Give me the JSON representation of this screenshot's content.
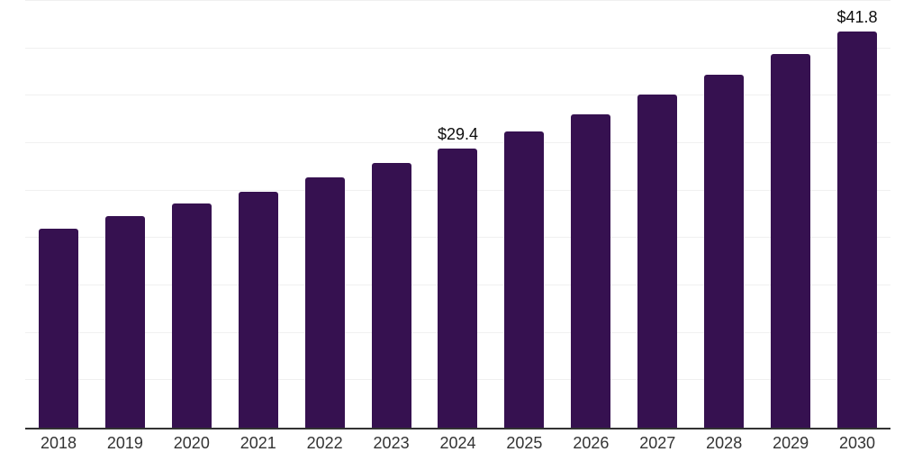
{
  "chart_data": {
    "type": "bar",
    "title": "",
    "xlabel": "",
    "ylabel": "",
    "categories": [
      "2018",
      "2019",
      "2020",
      "2021",
      "2022",
      "2023",
      "2024",
      "2025",
      "2026",
      "2027",
      "2028",
      "2029",
      "2030"
    ],
    "values": [
      21.0,
      22.3,
      23.6,
      24.9,
      26.4,
      27.9,
      29.4,
      31.2,
      33.0,
      35.1,
      37.2,
      39.4,
      41.8
    ],
    "points": [
      {
        "year": "2018",
        "value": 21.0,
        "label": ""
      },
      {
        "year": "2019",
        "value": 22.3,
        "label": ""
      },
      {
        "year": "2020",
        "value": 23.6,
        "label": ""
      },
      {
        "year": "2021",
        "value": 24.9,
        "label": ""
      },
      {
        "year": "2022",
        "value": 26.4,
        "label": ""
      },
      {
        "year": "2023",
        "value": 27.9,
        "label": ""
      },
      {
        "year": "2024",
        "value": 29.4,
        "label": "$29.4"
      },
      {
        "year": "2025",
        "value": 31.2,
        "label": ""
      },
      {
        "year": "2026",
        "value": 33.0,
        "label": ""
      },
      {
        "year": "2027",
        "value": 35.1,
        "label": ""
      },
      {
        "year": "2028",
        "value": 37.2,
        "label": ""
      },
      {
        "year": "2029",
        "value": 39.4,
        "label": ""
      },
      {
        "year": "2030",
        "value": 41.8,
        "label": "$41.8"
      }
    ],
    "annotated_labels": {
      "2024": "$29.4",
      "2030": "$41.8"
    },
    "ylim": [
      0,
      45
    ],
    "gridline_step": 5,
    "grid": true,
    "legend": false,
    "colors": {
      "bar": "#361150",
      "gridline": "#f0f0f0",
      "axis_line": "#333333",
      "value_label": "#0d0d0d",
      "tick_label": "#333333",
      "background": "#ffffff"
    }
  }
}
